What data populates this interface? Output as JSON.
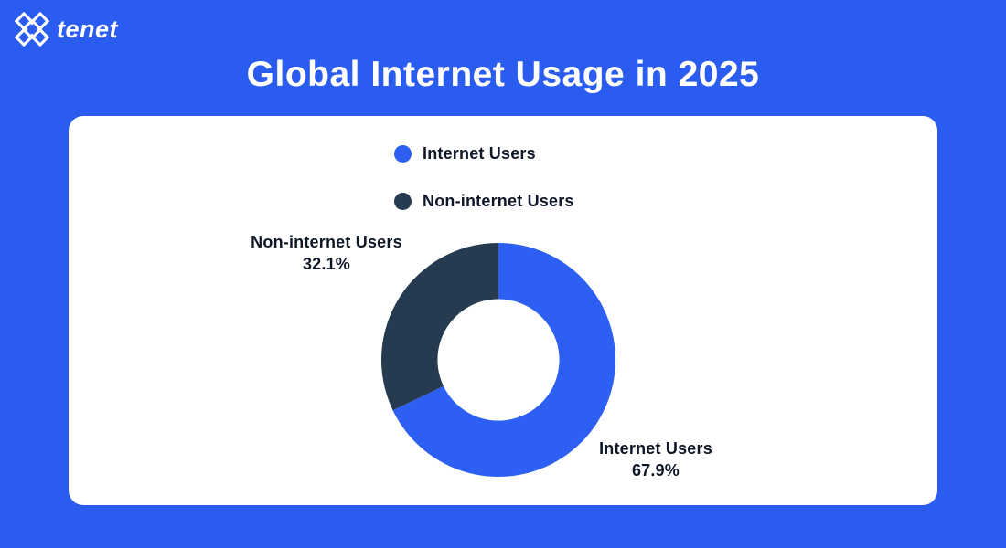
{
  "brand": {
    "name": "tenet"
  },
  "page": {
    "title": "Global Internet Usage in 2025"
  },
  "colors": {
    "background": "#2B5CF0",
    "card": "#FFFFFF",
    "internet_blue": "#2D5FF3",
    "non_internet_navy": "#263B50",
    "text_dark": "#0F1828",
    "text_light": "#FFFFFF"
  },
  "legend": {
    "items": [
      {
        "label": "Internet Users",
        "color": "#2D5FF3"
      },
      {
        "label": "Non-internet Users",
        "color": "#263B50"
      }
    ]
  },
  "chart_data": {
    "type": "pie",
    "donut": true,
    "title": "Global Internet Usage in 2025",
    "categories": [
      "Internet Users",
      "Non-internet Users"
    ],
    "values": [
      67.9,
      32.1
    ],
    "unit": "%",
    "colors": [
      "#2D5FF3",
      "#263B50"
    ],
    "start_angle_deg": -90,
    "direction": "clockwise",
    "inner_radius_ratio": 0.52,
    "legend_position": "top",
    "labels": [
      {
        "text": "Internet Users",
        "value_text": "67.9%",
        "position": "bottom-right"
      },
      {
        "text": "Non-internet Users",
        "value_text": "32.1%",
        "position": "top-left"
      }
    ]
  }
}
